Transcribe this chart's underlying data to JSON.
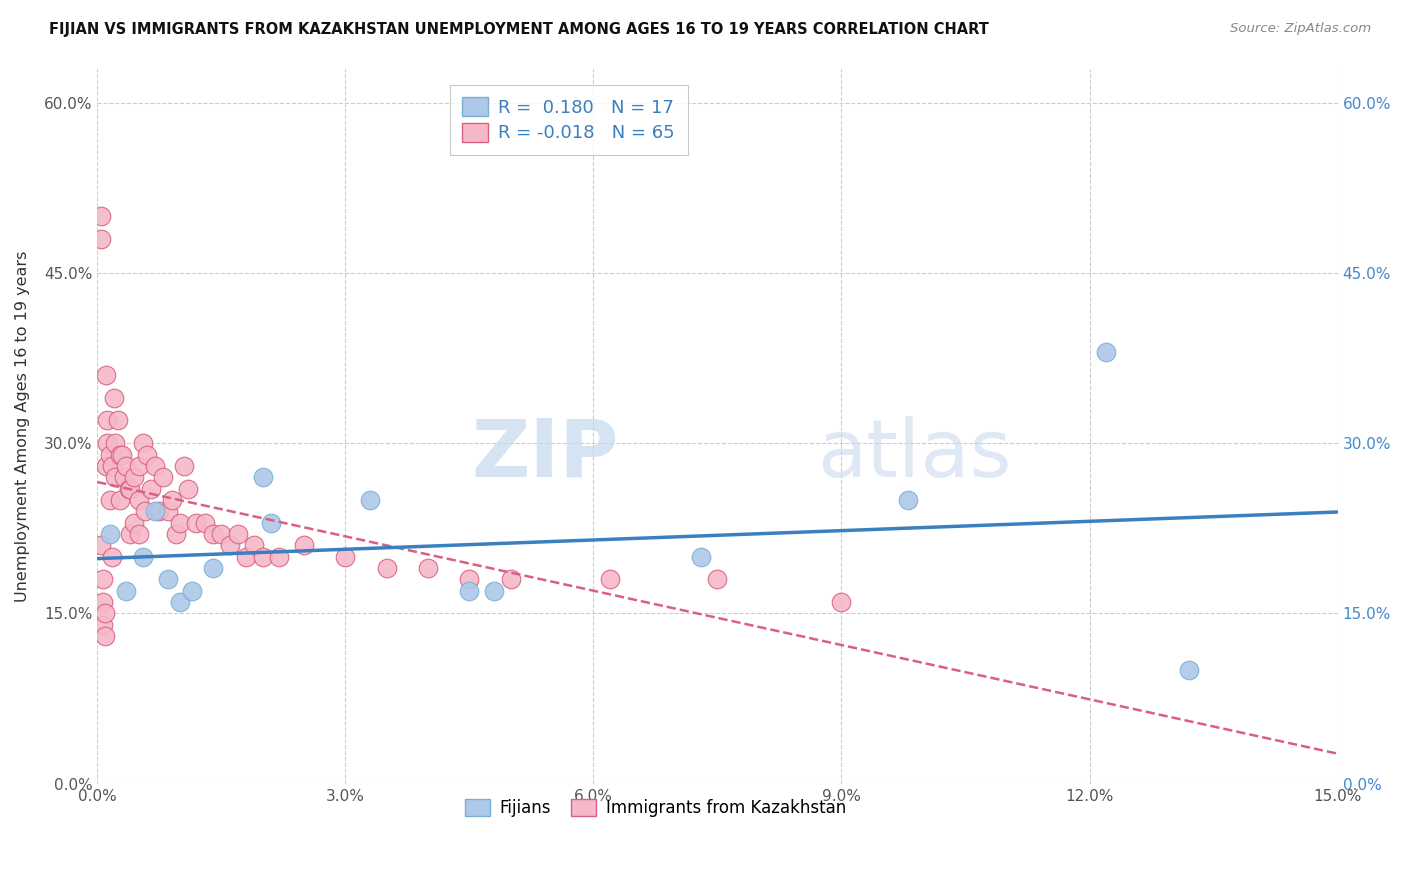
{
  "title": "FIJIAN VS IMMIGRANTS FROM KAZAKHSTAN UNEMPLOYMENT AMONG AGES 16 TO 19 YEARS CORRELATION CHART",
  "source": "Source: ZipAtlas.com",
  "xlabel_vals": [
    0,
    3,
    6,
    9,
    12,
    15
  ],
  "ylabel_vals": [
    0,
    15,
    30,
    45,
    60
  ],
  "ylabel_label": "Unemployment Among Ages 16 to 19 years",
  "xlim": [
    0,
    15
  ],
  "ylim": [
    0,
    63
  ],
  "fijian_color": "#adc8e8",
  "fijian_edge": "#7aafd4",
  "fijian_line_color": "#3a7fbf",
  "kaz_color": "#f5b8c8",
  "kaz_edge": "#d96080",
  "kaz_line_color": "#d96080",
  "R_fijian": 0.18,
  "N_fijian": 17,
  "R_kaz": -0.018,
  "N_kaz": 65,
  "watermark_zip": "ZIP",
  "watermark_atlas": "atlas",
  "fijian_x": [
    0.15,
    0.35,
    0.55,
    0.7,
    0.85,
    1.0,
    1.15,
    1.4,
    2.0,
    2.1,
    3.3,
    4.5,
    4.8,
    7.3,
    9.8,
    12.2,
    13.2
  ],
  "fijian_y": [
    22,
    17,
    20,
    24,
    18,
    16,
    17,
    19,
    27,
    23,
    25,
    17,
    17,
    20,
    25,
    38,
    10
  ],
  "kaz_x": [
    0.05,
    0.05,
    0.05,
    0.07,
    0.07,
    0.07,
    0.09,
    0.09,
    0.1,
    0.1,
    0.12,
    0.12,
    0.15,
    0.15,
    0.18,
    0.18,
    0.2,
    0.22,
    0.22,
    0.25,
    0.28,
    0.28,
    0.3,
    0.32,
    0.35,
    0.38,
    0.4,
    0.4,
    0.45,
    0.45,
    0.5,
    0.5,
    0.5,
    0.55,
    0.58,
    0.6,
    0.65,
    0.7,
    0.75,
    0.8,
    0.85,
    0.9,
    0.95,
    1.0,
    1.05,
    1.1,
    1.2,
    1.3,
    1.4,
    1.5,
    1.6,
    1.7,
    1.8,
    1.9,
    2.0,
    2.2,
    2.5,
    3.0,
    3.5,
    4.0,
    4.5,
    5.0,
    6.2,
    7.5,
    9.0
  ],
  "kaz_y": [
    50,
    48,
    21,
    18,
    16,
    14,
    15,
    13,
    36,
    28,
    32,
    30,
    29,
    25,
    28,
    20,
    34,
    30,
    27,
    32,
    29,
    25,
    29,
    27,
    28,
    26,
    26,
    22,
    27,
    23,
    28,
    25,
    22,
    30,
    24,
    29,
    26,
    28,
    24,
    27,
    24,
    25,
    22,
    23,
    28,
    26,
    23,
    23,
    22,
    22,
    21,
    22,
    20,
    21,
    20,
    20,
    21,
    20,
    19,
    19,
    18,
    18,
    18,
    18,
    16
  ]
}
